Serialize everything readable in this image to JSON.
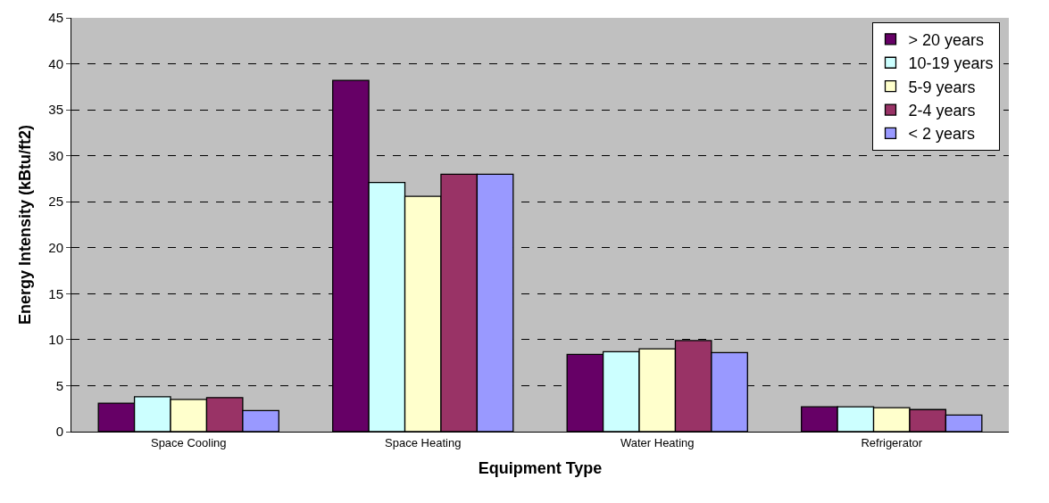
{
  "chart_data": {
    "type": "bar",
    "xlabel": "Equipment Type",
    "ylabel": "Energy Intensity (kBtu/ft2)",
    "categories": [
      "Space Cooling",
      "Space Heating",
      "Water Heating",
      "Refrigerator"
    ],
    "series": [
      {
        "name": "> 20 years",
        "color": "#660066",
        "values": [
          3.1,
          38.2,
          8.4,
          2.7
        ]
      },
      {
        "name": "10-19 years",
        "color": "#ccffff",
        "values": [
          3.8,
          27.1,
          8.7,
          2.7
        ]
      },
      {
        "name": "5-9 years",
        "color": "#ffffcc",
        "values": [
          3.5,
          25.6,
          9.0,
          2.6
        ]
      },
      {
        "name": "2-4 years",
        "color": "#993366",
        "values": [
          3.7,
          28.0,
          9.9,
          2.4
        ]
      },
      {
        "name": "< 2 years",
        "color": "#9999ff",
        "values": [
          2.3,
          28.0,
          8.6,
          1.8
        ]
      }
    ],
    "ylim": [
      0,
      45
    ],
    "yticks": [
      0,
      5,
      10,
      15,
      20,
      25,
      30,
      35,
      40,
      45
    ],
    "grid": "y",
    "legend": "top right"
  }
}
